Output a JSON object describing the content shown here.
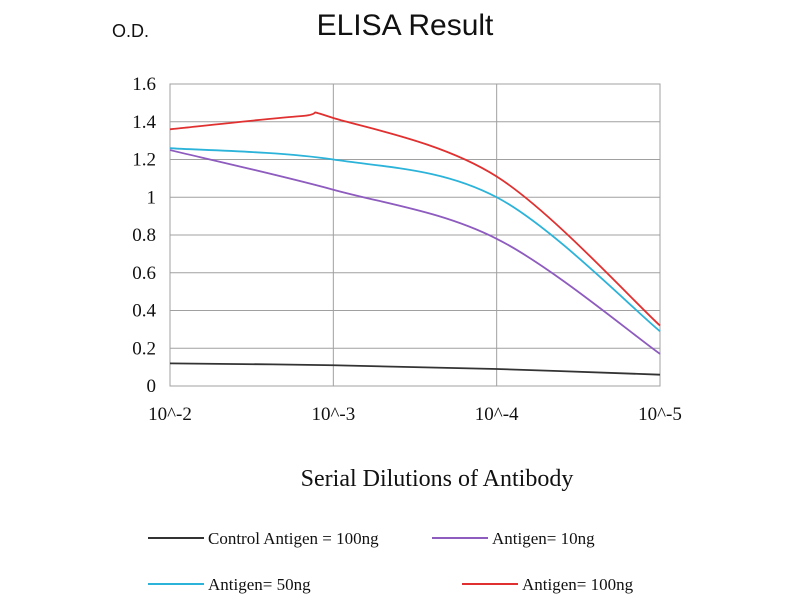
{
  "chart_data": {
    "type": "line",
    "title": "ELISA Result",
    "ylabel": "O.D.",
    "xlabel": "Serial Dilutions of Antibody",
    "categories": [
      "10^-2",
      "10^-3",
      "10^-4",
      "10^-5"
    ],
    "ylim": [
      0,
      1.6
    ],
    "yticks": [
      "0",
      "0.2",
      "0.4",
      "0.6",
      "0.8",
      "1",
      "1.2",
      "1.4",
      "1.6"
    ],
    "grid": true,
    "legend_position": "bottom",
    "series": [
      {
        "name": "Control Antigen = 100ng",
        "color": "#333333",
        "x": [
          0,
          1,
          2,
          3
        ],
        "values": [
          0.12,
          0.11,
          0.09,
          0.06
        ]
      },
      {
        "name": "Antigen= 10ng",
        "color": "#8e5bbf",
        "x": [
          0,
          1,
          2,
          3
        ],
        "values": [
          1.25,
          1.04,
          0.78,
          0.17
        ]
      },
      {
        "name": "Antigen= 50ng",
        "color": "#2bb3d9",
        "x": [
          0,
          1,
          2,
          3
        ],
        "values": [
          1.26,
          1.2,
          1.0,
          0.29
        ]
      },
      {
        "name": "Antigen= 100ng",
        "color": "#e03030",
        "x": [
          0,
          0.8,
          1,
          2,
          3
        ],
        "values": [
          1.36,
          1.43,
          1.42,
          1.11,
          0.32
        ]
      }
    ]
  }
}
